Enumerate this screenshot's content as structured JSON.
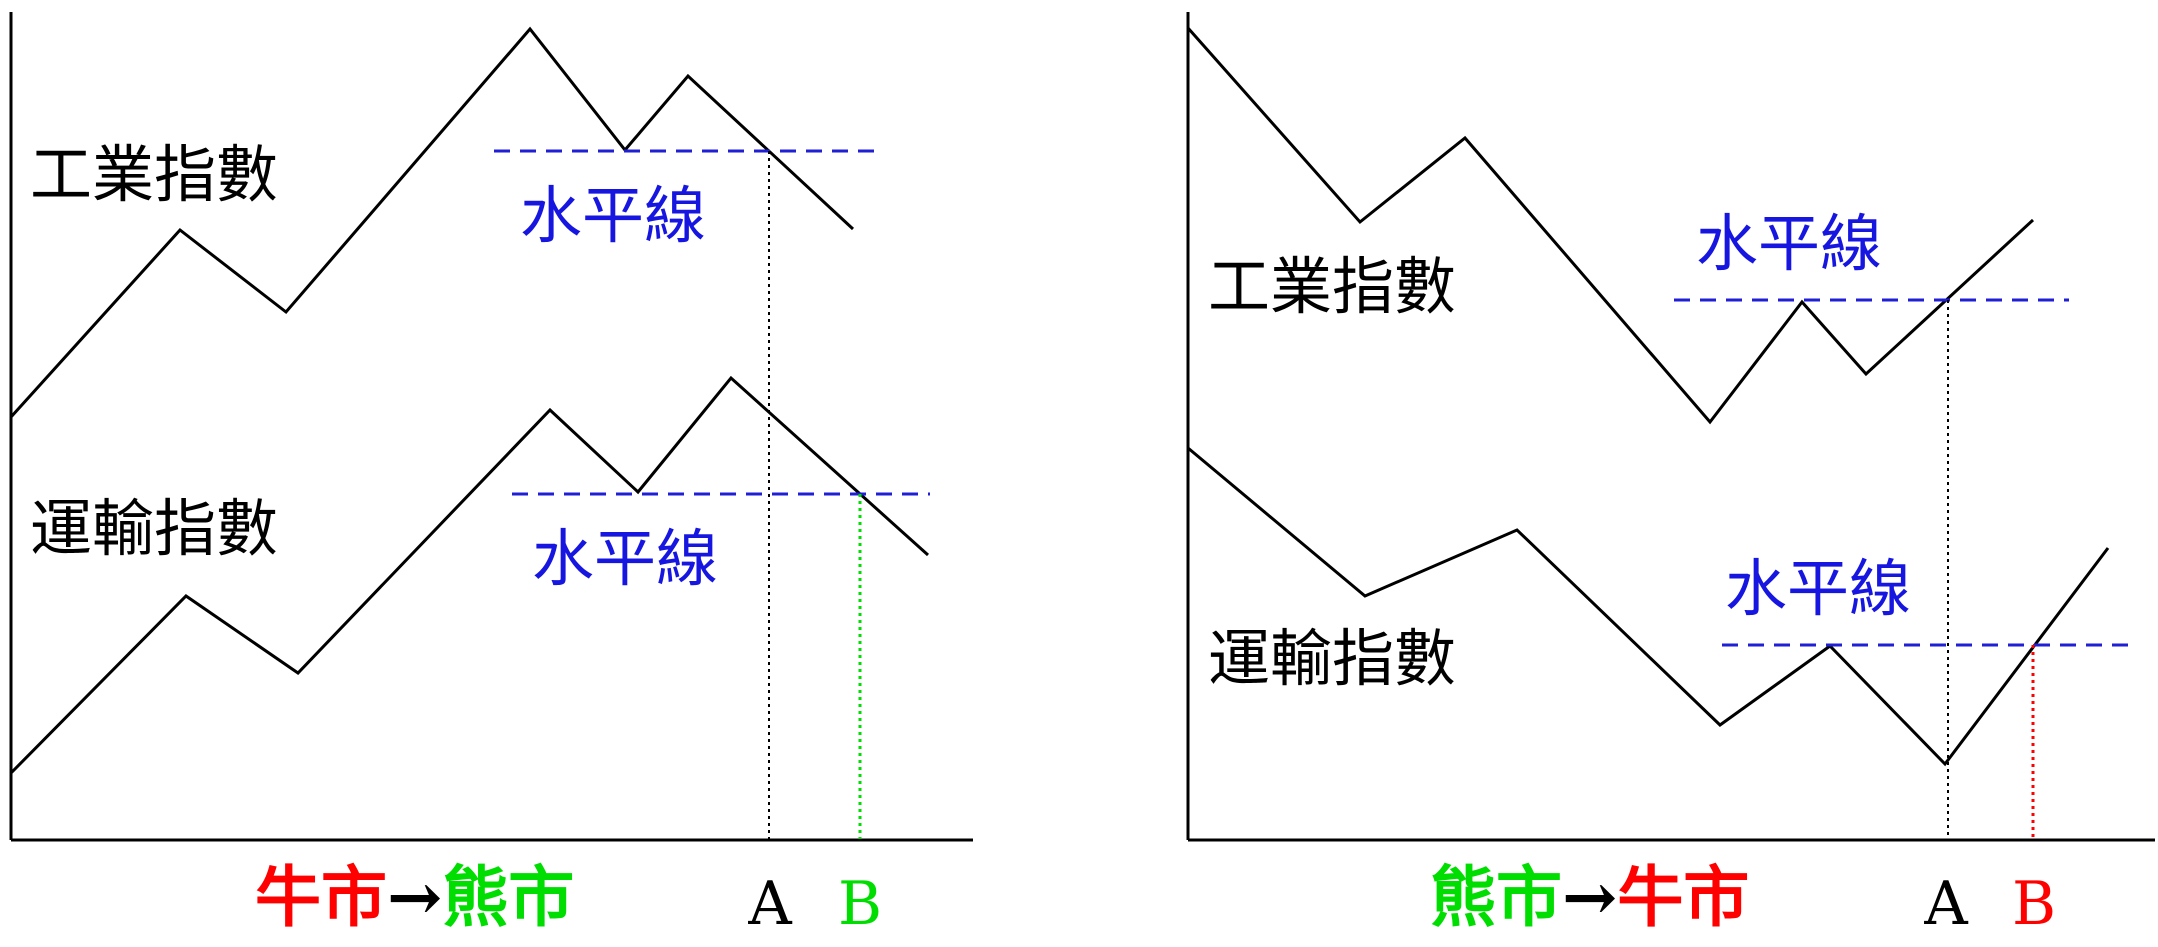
{
  "colors": {
    "axis": "#000000",
    "index_line": "#000000",
    "horizontal_line": "#1f1fd6",
    "label_blue": "#1616e0",
    "bull": "#ff0000",
    "bear": "#00dd00",
    "marker_a": "#000000",
    "dotted_a": "#000000"
  },
  "left_panel": {
    "industrial_label": "工業指數",
    "transport_label": "運輸指數",
    "industrial_horizontal_label": "水平線",
    "transport_horizontal_label": "水平線",
    "caption_from": "牛市",
    "caption_arrow": "→",
    "caption_to": "熊市",
    "marker_a": "A",
    "marker_b": "B"
  },
  "right_panel": {
    "industrial_label": "工業指數",
    "transport_label": "運輸指數",
    "industrial_horizontal_label": "水平線",
    "transport_horizontal_label": "水平線",
    "caption_from": "熊市",
    "caption_arrow": "→",
    "caption_to": "牛市",
    "marker_a": "A",
    "marker_b": "B"
  }
}
